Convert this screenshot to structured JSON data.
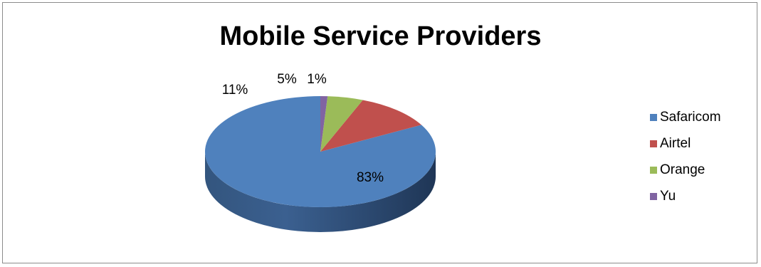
{
  "chart_data": {
    "type": "pie",
    "title": "Mobile Service Providers",
    "categories": [
      "Safaricom",
      "Airtel",
      "Orange",
      "Yu"
    ],
    "values": [
      83,
      11,
      5,
      1
    ],
    "data_labels": [
      "83%",
      "11%",
      "5%",
      "1%"
    ],
    "colors": [
      "#4f81bd",
      "#c0504d",
      "#9bbb59",
      "#8064a2"
    ],
    "legend_position": "right",
    "style": "3d"
  }
}
